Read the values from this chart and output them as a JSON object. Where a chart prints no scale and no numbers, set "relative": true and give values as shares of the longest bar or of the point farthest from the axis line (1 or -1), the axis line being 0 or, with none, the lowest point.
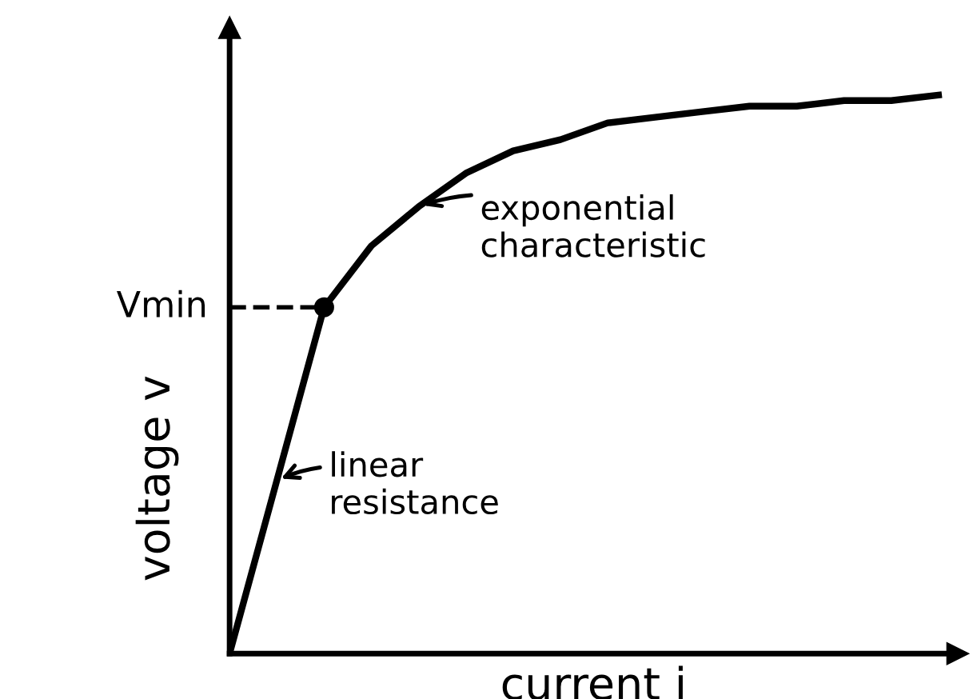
{
  "chart_data": {
    "type": "line",
    "relative": true,
    "xlabel": "current i",
    "ylabel": "voltage v",
    "categories": [
      null,
      null,
      null,
      null,
      null,
      null,
      null,
      null,
      null,
      null,
      null,
      null,
      null,
      null,
      null,
      null
    ],
    "series": [
      {
        "color": "#000000",
        "values": [
          0,
          0.31,
          0.62,
          0.73,
          0.8,
          0.86,
          0.9,
          0.92,
          0.95,
          0.96,
          0.97,
          0.98,
          0.98,
          0.99,
          0.99,
          1.0
        ]
      }
    ],
    "ref_lines": [
      {
        "axis": "y",
        "value": 0.62,
        "label": "Vmin",
        "line_style": "dashed"
      }
    ],
    "annotations": [
      "exponential characteristic",
      "linear resistance"
    ],
    "grid": false,
    "legend": false
  }
}
